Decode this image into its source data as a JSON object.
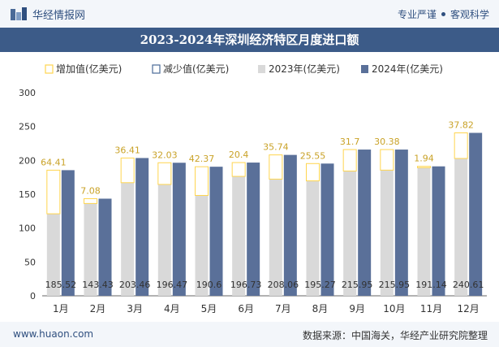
{
  "header": {
    "brand": "华经情报网",
    "tagline_left": "专业严谨",
    "tagline_right": "客观科学"
  },
  "footer": {
    "website": "www.huaon.com",
    "source": "数据来源：中国海关，华经产业研究院整理"
  },
  "colors": {
    "increase": "#ffd54f",
    "decrease": "#4a6a98",
    "y2023": "#d9d9d9",
    "y2024": "#5a7099",
    "header_bg": "#3c5b88",
    "label": "#c9a227"
  },
  "chart_data": {
    "type": "bar",
    "title": "2023-2024年深圳经济特区月度进口额",
    "categories": [
      "1月",
      "2月",
      "3月",
      "4月",
      "5月",
      "6月",
      "7月",
      "8月",
      "9月",
      "10月",
      "11月",
      "12月"
    ],
    "legend": [
      "增加值(亿美元)",
      "减少值(亿美元)",
      "2023年(亿美元)",
      "2024年(亿美元)"
    ],
    "legend_position": "top",
    "ylim": [
      0,
      300
    ],
    "yticks": [
      0,
      50,
      100,
      150,
      200,
      250,
      300
    ],
    "series": [
      {
        "name": "2023年(亿美元)",
        "values": [
          121.11,
          136.35,
          167.05,
          164.44,
          148.23,
          176.33,
          172.32,
          169.72,
          184.25,
          185.57,
          189.2,
          202.79
        ]
      },
      {
        "name": "2024年(亿美元)",
        "values": [
          185.52,
          143.43,
          203.46,
          196.47,
          190.6,
          196.73,
          208.06,
          195.27,
          215.95,
          215.95,
          191.14,
          240.61
        ]
      }
    ],
    "change_labels": [
      "64.41",
      "7.08",
      "36.41",
      "32.03",
      "42.37",
      "20.4",
      "35.74",
      "25.55",
      "31.7",
      "30.38",
      "1.94",
      "37.82"
    ],
    "value_labels": [
      "185.52",
      "143.43",
      "203.46",
      "196.47",
      "190.6",
      "196.73",
      "208.06",
      "195.27",
      "215.95",
      "215.95",
      "191.14",
      "240.61"
    ],
    "grid": false
  }
}
